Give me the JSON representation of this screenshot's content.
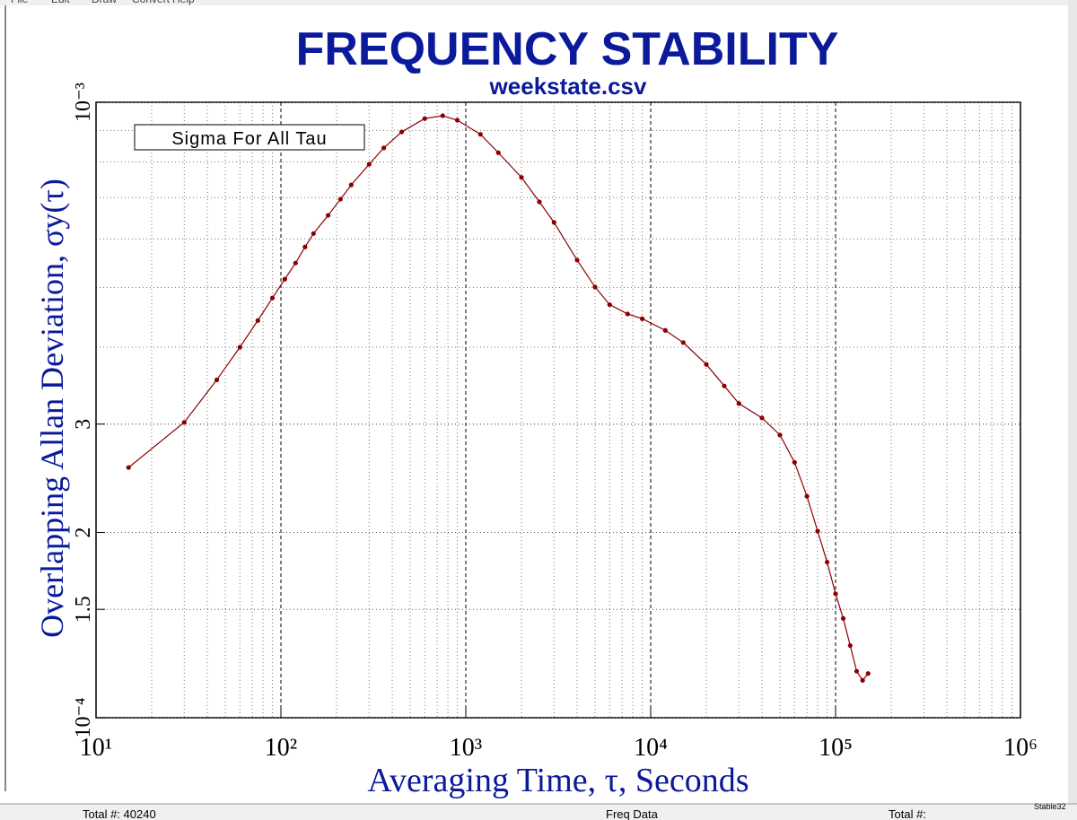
{
  "app_menu": [
    "File",
    "Edit",
    "Draw",
    "Convert",
    "Help"
  ],
  "status_bar": {
    "left_total": "Total #:   40240",
    "option": "Freq Data",
    "right_total": "Total #:",
    "app_name": "Stable32"
  },
  "chart_data": {
    "type": "line",
    "title": "FREQUENCY STABILITY",
    "subtitle": "weekstate.csv",
    "x_label": "Averaging Time, τ, Seconds",
    "y_label": "Overlapping Allan Deviation, σy(τ)",
    "legend_box": "Sigma For All Tau",
    "log_x": true,
    "log_y": true,
    "grid": true,
    "xlim": [
      10,
      1000000
    ],
    "xticks": [
      {
        "value": 10,
        "label": "10¹"
      },
      {
        "value": 100,
        "label": "10²"
      },
      {
        "value": 1000,
        "label": "10³"
      },
      {
        "value": 10000,
        "label": "10⁴"
      },
      {
        "value": 100000,
        "label": "10⁵"
      },
      {
        "value": 1000000,
        "label": "10⁶"
      }
    ],
    "ylim": [
      0.0001,
      0.001
    ],
    "yticks": [
      {
        "value": 0.0001,
        "label": "10⁻⁴"
      },
      {
        "value": 0.00015,
        "label": "1.5"
      },
      {
        "value": 0.0002,
        "label": "2"
      },
      {
        "value": 0.0003,
        "label": "3"
      },
      {
        "value": 0.001,
        "label": "10⁻³"
      }
    ],
    "x": [
      15,
      30,
      45,
      60,
      75,
      90,
      105,
      120,
      135,
      150,
      180,
      210,
      240,
      300,
      360,
      450,
      600,
      750,
      900,
      1200,
      1500,
      2000,
      2500,
      3000,
      4000,
      5000,
      6000,
      7500,
      9000,
      12000,
      15000,
      20000,
      25000,
      30000,
      40000,
      50000,
      60000,
      70000,
      80000,
      90000,
      100000,
      110000,
      120000,
      130000,
      140000,
      150000
    ],
    "series": [
      {
        "name": "Sigma For All Tau",
        "color": "#8b0000",
        "values": [
          0.000255,
          0.000302,
          0.000354,
          0.0004,
          0.000442,
          0.000481,
          0.000516,
          0.000548,
          0.000582,
          0.000612,
          0.000655,
          0.000696,
          0.000734,
          0.000793,
          0.000843,
          0.000895,
          0.000941,
          0.000951,
          0.000935,
          0.000887,
          0.000828,
          0.000755,
          0.000689,
          0.000638,
          0.000554,
          0.000501,
          0.000469,
          0.000453,
          0.000445,
          0.000426,
          0.000407,
          0.000375,
          0.000346,
          0.000324,
          0.000307,
          0.000288,
          0.00026,
          0.000229,
          0.000201,
          0.000179,
          0.000159,
          0.000145,
          0.000131,
          0.000119,
          0.000115,
          0.000118
        ]
      }
    ]
  }
}
